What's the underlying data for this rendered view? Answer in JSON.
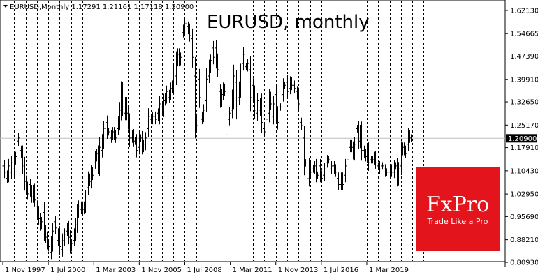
{
  "header": {
    "symbol_info": "EURUSD,Monthly  1.17291 1.21161 1.17118 1.20900",
    "chart_title": "EURUSD, monthly"
  },
  "logo": {
    "brand": "FxPro",
    "tagline": "Trade Like a Pro",
    "color": "#e3141b"
  },
  "price_marker": {
    "label": "1.20900",
    "value": 1.209,
    "color": "#000000"
  },
  "chart_data": {
    "type": "ohlc",
    "title": "EURUSD, monthly",
    "xlabel": "",
    "ylabel": "",
    "ylim": [
      0.8,
      1.64
    ],
    "ytick_labels": [
      "1.62130",
      "1.54665",
      "1.47390",
      "1.39910",
      "1.32650",
      "1.25170",
      "1.17910",
      "1.10430",
      "1.02950",
      "0.95690",
      "0.88210",
      "0.80930"
    ],
    "ytick_values": [
      1.6213,
      1.54665,
      1.4739,
      1.3991,
      1.3265,
      1.2517,
      1.1791,
      1.1043,
      1.0295,
      0.9569,
      0.8821,
      0.8093
    ],
    "xtick_labels": [
      "1 Nov 1997",
      "1 Jul 2000",
      "1 Mar 2003",
      "1 Nov 2005",
      "1 Jul 2008",
      "1 Mar 2011",
      "1 Nov 2013",
      "1 Jul 2016",
      "1 Mar 2019"
    ],
    "x_start": "1997-11",
    "x_step": "1 month",
    "grid_vertical": "dashed",
    "bar_color": "#000000",
    "close": [
      1.12,
      1.1,
      1.08,
      1.09,
      1.12,
      1.1,
      1.13,
      1.11,
      1.14,
      1.15,
      1.2,
      1.21,
      1.17,
      1.16,
      1.12,
      1.07,
      1.05,
      1.03,
      1.06,
      1.04,
      1.02,
      1.04,
      1.01,
      0.99,
      0.97,
      0.95,
      0.93,
      0.94,
      0.97,
      0.91,
      0.89,
      0.87,
      0.86,
      0.84,
      0.87,
      0.91,
      0.94,
      0.92,
      0.88,
      0.9,
      0.86,
      0.85,
      0.88,
      0.9,
      0.91,
      0.92,
      0.89,
      0.86,
      0.87,
      0.88,
      0.9,
      0.93,
      0.97,
      0.99,
      0.98,
      0.99,
      0.98,
      0.99,
      1.02,
      1.05,
      1.08,
      1.07,
      1.1,
      1.09,
      1.13,
      1.15,
      1.16,
      1.12,
      1.18,
      1.17,
      1.2,
      1.24,
      1.26,
      1.23,
      1.23,
      1.21,
      1.22,
      1.23,
      1.22,
      1.21,
      1.24,
      1.26,
      1.3,
      1.36,
      1.31,
      1.29,
      1.32,
      1.29,
      1.26,
      1.21,
      1.21,
      1.22,
      1.2,
      1.2,
      1.17,
      1.18,
      1.21,
      1.21,
      1.18,
      1.19,
      1.21,
      1.24,
      1.28,
      1.27,
      1.27,
      1.28,
      1.28,
      1.27,
      1.29,
      1.28,
      1.32,
      1.31,
      1.3,
      1.33,
      1.34,
      1.36,
      1.34,
      1.35,
      1.37,
      1.38,
      1.42,
      1.41,
      1.46,
      1.48,
      1.46,
      1.47,
      1.55,
      1.56,
      1.58,
      1.57,
      1.56,
      1.54,
      1.53,
      1.47,
      1.41,
      1.27,
      1.25,
      1.4,
      1.34,
      1.27,
      1.28,
      1.3,
      1.33,
      1.4,
      1.41,
      1.44,
      1.46,
      1.5,
      1.47,
      1.5,
      1.46,
      1.43,
      1.36,
      1.33,
      1.35,
      1.37,
      1.36,
      1.22,
      1.27,
      1.29,
      1.3,
      1.34,
      1.41,
      1.39,
      1.31,
      1.34,
      1.37,
      1.42,
      1.45,
      1.48,
      1.44,
      1.44,
      1.45,
      1.43,
      1.34,
      1.38,
      1.35,
      1.3,
      1.29,
      1.33,
      1.3,
      1.32,
      1.26,
      1.24,
      1.23,
      1.27,
      1.29,
      1.34,
      1.32,
      1.28,
      1.32,
      1.35,
      1.29,
      1.26,
      1.31,
      1.31,
      1.35,
      1.38,
      1.38,
      1.39,
      1.36,
      1.37,
      1.39,
      1.38,
      1.38,
      1.37,
      1.36,
      1.35,
      1.32,
      1.26,
      1.25,
      1.21,
      1.13,
      1.13,
      1.08,
      1.12,
      1.1,
      1.11,
      1.11,
      1.12,
      1.09,
      1.09,
      1.12,
      1.09,
      1.08,
      1.09,
      1.11,
      1.13,
      1.14,
      1.14,
      1.11,
      1.12,
      1.12,
      1.11,
      1.1,
      1.08,
      1.06,
      1.06,
      1.08,
      1.06,
      1.09,
      1.12,
      1.14,
      1.18,
      1.19,
      1.18,
      1.16,
      1.19,
      1.24,
      1.24,
      1.2,
      1.23,
      1.17,
      1.17,
      1.16,
      1.15,
      1.17,
      1.13,
      1.14,
      1.14,
      1.14,
      1.15,
      1.13,
      1.12,
      1.12,
      1.11,
      1.12,
      1.12,
      1.11,
      1.1,
      1.1,
      1.1,
      1.11,
      1.1,
      1.1,
      1.12,
      1.12,
      1.08,
      1.11,
      1.12,
      1.17,
      1.18,
      1.17,
      1.16,
      1.19,
      1.22,
      1.21,
      1.21
    ]
  }
}
